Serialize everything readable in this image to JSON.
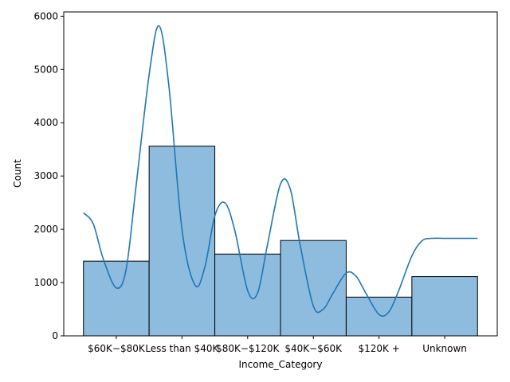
{
  "chart_data": {
    "type": "bar",
    "title": "",
    "xlabel": "Income_Category",
    "ylabel": "Count",
    "categories": [
      "$60K - $80K",
      "Less than $40K",
      "$80K - $120K",
      "$40K - $60K",
      "$120K +",
      "Unknown"
    ],
    "tick_labels": [
      "$60K−$80K",
      "Less than $40K",
      "$80K−$120K",
      "$40K−$60K",
      "$120K +",
      "Unknown"
    ],
    "values": [
      1402,
      3561,
      1535,
      1790,
      727,
      1112
    ],
    "ylim": [
      0,
      6080
    ],
    "yticks": [
      0,
      1000,
      2000,
      3000,
      4000,
      5000,
      6000
    ],
    "grid": false,
    "kde": {
      "x": [
        -0.5,
        -0.35,
        -0.2,
        0.0,
        0.15,
        0.3,
        0.5,
        0.65,
        0.8,
        1.0,
        1.2,
        1.35,
        1.5,
        1.65,
        1.8,
        2.0,
        2.15,
        2.3,
        2.5,
        2.65,
        2.8,
        3.0,
        3.15,
        3.3,
        3.5,
        3.65,
        3.8,
        4.0,
        4.15,
        4.3,
        4.5,
        4.65,
        4.8,
        5.0,
        5.2,
        5.35,
        5.5
      ],
      "y": [
        2310,
        2100,
        1450,
        900,
        1250,
        2800,
        4900,
        5820,
        4700,
        2000,
        950,
        1300,
        2250,
        2500,
        2000,
        850,
        800,
        1700,
        2850,
        2750,
        1700,
        560,
        500,
        800,
        1180,
        1120,
        800,
        400,
        450,
        850,
        1500,
        1780,
        1830,
        1830,
        1830,
        1830,
        1830
      ]
    },
    "colors": {
      "bar_fill": "#8dbcdf",
      "bar_edge": "#000000",
      "kde_line": "#1f77b4"
    }
  }
}
